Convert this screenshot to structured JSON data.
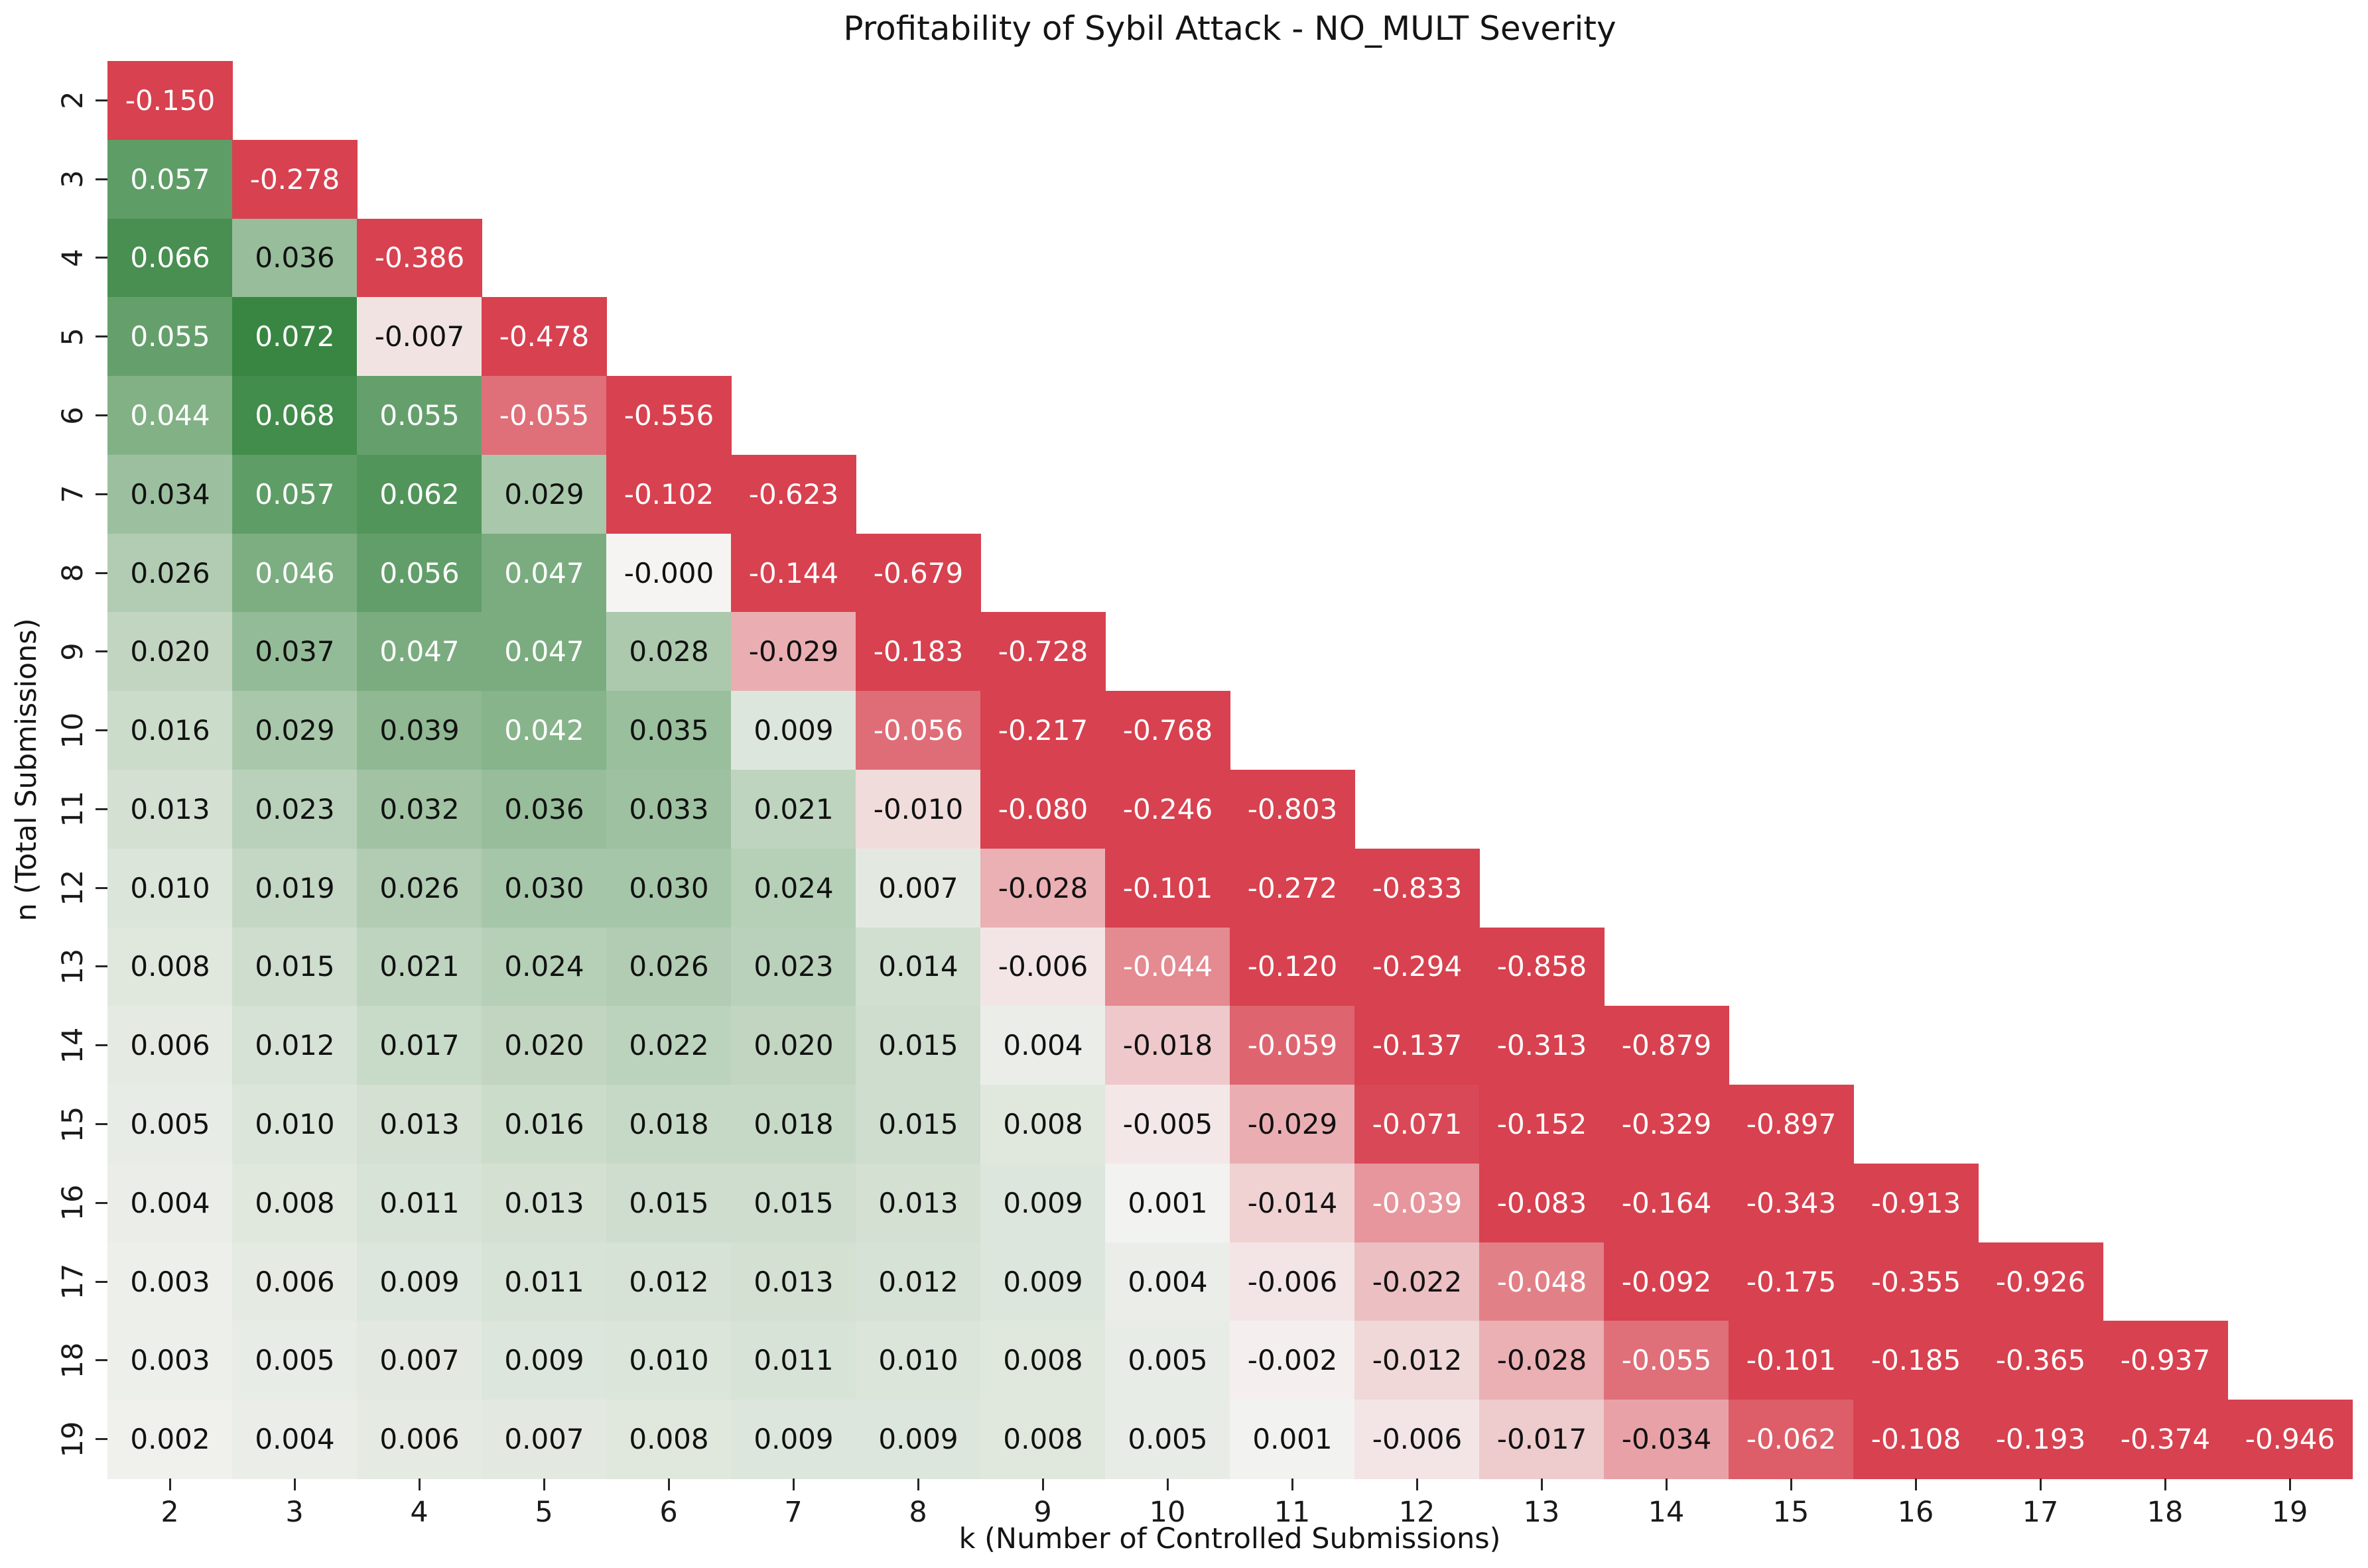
{
  "title": "Profitability of Sybil Attack - NO_MULT Severity",
  "chart_data": {
    "type": "heatmap",
    "title": "Profitability of Sybil Attack - NO_MULT Severity",
    "xlabel": "k (Number of Controlled Submissions)",
    "ylabel": "n (Total Submissions)",
    "x_ticks": [
      "2",
      "3",
      "4",
      "5",
      "6",
      "7",
      "8",
      "9",
      "10",
      "11",
      "12",
      "13",
      "14",
      "15",
      "16",
      "17",
      "18",
      "19"
    ],
    "y_ticks": [
      "2",
      "3",
      "4",
      "5",
      "6",
      "7",
      "8",
      "9",
      "10",
      "11",
      "12",
      "13",
      "14",
      "15",
      "16",
      "17",
      "18",
      "19"
    ],
    "shape_note": "lower-triangular: row for n has cells for k = 2..n",
    "cell_text": [
      [
        "-0.150"
      ],
      [
        "0.057",
        "-0.278"
      ],
      [
        "0.066",
        "0.036",
        "-0.386"
      ],
      [
        "0.055",
        "0.072",
        "-0.007",
        "-0.478"
      ],
      [
        "0.044",
        "0.068",
        "0.055",
        "-0.055",
        "-0.556"
      ],
      [
        "0.034",
        "0.057",
        "0.062",
        "0.029",
        "-0.102",
        "-0.623"
      ],
      [
        "0.026",
        "0.046",
        "0.056",
        "0.047",
        "-0.000",
        "-0.144",
        "-0.679"
      ],
      [
        "0.020",
        "0.037",
        "0.047",
        "0.047",
        "0.028",
        "-0.029",
        "-0.183",
        "-0.728"
      ],
      [
        "0.016",
        "0.029",
        "0.039",
        "0.042",
        "0.035",
        "0.009",
        "-0.056",
        "-0.217",
        "-0.768"
      ],
      [
        "0.013",
        "0.023",
        "0.032",
        "0.036",
        "0.033",
        "0.021",
        "-0.010",
        "-0.080",
        "-0.246",
        "-0.803"
      ],
      [
        "0.010",
        "0.019",
        "0.026",
        "0.030",
        "0.030",
        "0.024",
        "0.007",
        "-0.028",
        "-0.101",
        "-0.272",
        "-0.833"
      ],
      [
        "0.008",
        "0.015",
        "0.021",
        "0.024",
        "0.026",
        "0.023",
        "0.014",
        "-0.006",
        "-0.044",
        "-0.120",
        "-0.294",
        "-0.858"
      ],
      [
        "0.006",
        "0.012",
        "0.017",
        "0.020",
        "0.022",
        "0.020",
        "0.015",
        "0.004",
        "-0.018",
        "-0.059",
        "-0.137",
        "-0.313",
        "-0.879"
      ],
      [
        "0.005",
        "0.010",
        "0.013",
        "0.016",
        "0.018",
        "0.018",
        "0.015",
        "0.008",
        "-0.005",
        "-0.029",
        "-0.071",
        "-0.152",
        "-0.329",
        "-0.897"
      ],
      [
        "0.004",
        "0.008",
        "0.011",
        "0.013",
        "0.015",
        "0.015",
        "0.013",
        "0.009",
        "0.001",
        "-0.014",
        "-0.039",
        "-0.083",
        "-0.164",
        "-0.343",
        "-0.913"
      ],
      [
        "0.003",
        "0.006",
        "0.009",
        "0.011",
        "0.012",
        "0.013",
        "0.012",
        "0.009",
        "0.004",
        "-0.006",
        "-0.022",
        "-0.048",
        "-0.092",
        "-0.175",
        "-0.355",
        "-0.926"
      ],
      [
        "0.003",
        "0.005",
        "0.007",
        "0.009",
        "0.010",
        "0.011",
        "0.010",
        "0.008",
        "0.005",
        "-0.002",
        "-0.012",
        "-0.028",
        "-0.055",
        "-0.101",
        "-0.185",
        "-0.365",
        "-0.937"
      ],
      [
        "0.002",
        "0.004",
        "0.006",
        "0.007",
        "0.008",
        "0.009",
        "0.009",
        "0.008",
        "0.005",
        "0.001",
        "-0.006",
        "-0.017",
        "-0.034",
        "-0.062",
        "-0.108",
        "-0.193",
        "-0.374",
        "-0.946"
      ]
    ],
    "value_range_shown": [
      -0.946,
      0.072
    ],
    "grid": false,
    "legend": "none",
    "style": {
      "center_color": "#f5f4f2",
      "positive_color": "#388642",
      "negative_color": "#d8414f",
      "positive_clamp": 0.072,
      "negative_clamp": 0.074,
      "text_dark": "#111111",
      "text_light": "#ffffff",
      "luminance_threshold": 0.673
    }
  }
}
